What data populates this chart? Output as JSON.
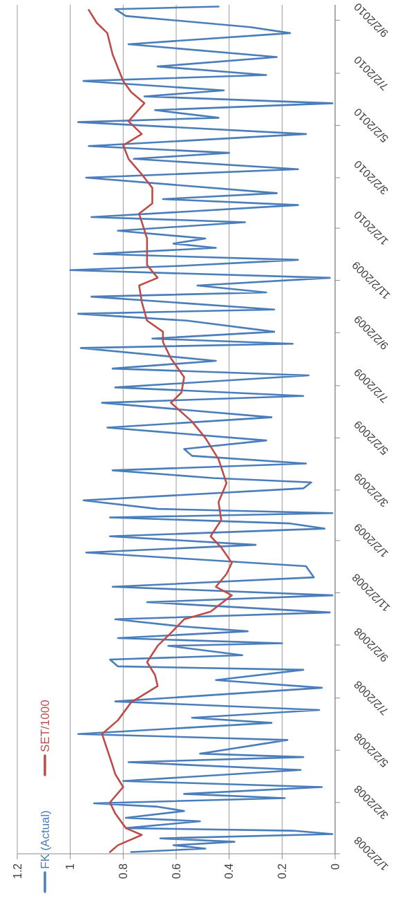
{
  "chart_data": {
    "type": "line",
    "orientation": "horizontal",
    "ylim": [
      "2008-01-02",
      "2010-09-20"
    ],
    "yticks": [
      {
        "value": "2008-01-02",
        "label": "1/2/2008"
      },
      {
        "value": "2008-03-02",
        "label": "3/2/2008"
      },
      {
        "value": "2008-05-02",
        "label": "5/2/2008"
      },
      {
        "value": "2008-07-02",
        "label": "7/2/2008"
      },
      {
        "value": "2008-09-02",
        "label": "9/2/2008"
      },
      {
        "value": "2008-11-02",
        "label": "11/2/2008"
      },
      {
        "value": "2009-01-02",
        "label": "1/2/2009"
      },
      {
        "value": "2009-03-02",
        "label": "3/2/2009"
      },
      {
        "value": "2009-05-02",
        "label": "5/2/2009"
      },
      {
        "value": "2009-07-02",
        "label": "7/2/2009"
      },
      {
        "value": "2009-09-02",
        "label": "9/2/2009"
      },
      {
        "value": "2009-11-02",
        "label": "11/2/2009"
      },
      {
        "value": "2010-01-02",
        "label": "1/2/2010"
      },
      {
        "value": "2010-03-02",
        "label": "3/2/2010"
      },
      {
        "value": "2010-05-02",
        "label": "5/2/2010"
      },
      {
        "value": "2010-07-02",
        "label": "7/2/2010"
      },
      {
        "value": "2010-09-02",
        "label": "9/2/2010"
      }
    ],
    "xlim": [
      1.2,
      0
    ],
    "xticks": [
      1.2,
      1,
      0.8,
      0.6,
      0.4,
      0.2,
      0
    ],
    "grid": "x",
    "legend": "left",
    "series": [
      {
        "name": "FK (Actual)",
        "color": "#4a7ebb",
        "x": [
          "2008-01-04",
          "2008-01-08",
          "2008-01-12",
          "2008-01-16",
          "2008-01-20",
          "2008-01-25",
          "2008-01-29",
          "2008-02-01",
          "2008-02-09",
          "2008-02-13",
          "2008-02-21",
          "2008-02-26",
          "2008-03-01",
          "2008-03-07",
          "2008-03-12",
          "2008-03-20",
          "2008-03-27",
          "2008-04-09",
          "2008-04-18",
          "2008-04-24",
          "2008-04-28",
          "2008-05-14",
          "2008-05-21",
          "2008-06-03",
          "2008-06-09",
          "2008-06-18",
          "2008-06-28",
          "2008-07-14",
          "2008-07-23",
          "2008-08-04",
          "2008-08-08",
          "2008-08-16",
          "2008-08-21",
          "2008-09-01",
          "2008-09-04",
          "2008-09-10",
          "2008-09-18",
          "2008-09-24",
          "2008-10-02",
          "2008-10-10",
          "2008-10-22",
          "2008-10-30",
          "2008-11-09",
          "2008-11-20",
          "2008-12-03",
          "2008-12-19",
          "2008-12-28",
          "2009-01-07",
          "2009-01-16",
          "2009-01-22",
          "2009-01-29",
          "2009-02-03",
          "2009-02-08",
          "2009-02-18",
          "2009-03-04",
          "2009-03-11",
          "2009-03-16",
          "2009-03-25",
          "2009-04-02",
          "2009-04-11",
          "2009-04-19",
          "2009-04-29",
          "2009-05-14",
          "2009-05-26",
          "2009-06-12",
          "2009-06-20",
          "2009-06-30",
          "2009-07-14",
          "2009-07-22",
          "2009-07-31",
          "2009-08-15",
          "2009-08-20",
          "2009-08-26",
          "2009-09-03",
          "2009-09-16",
          "2009-09-24",
          "2009-09-29",
          "2009-10-14",
          "2009-10-19",
          "2009-10-27",
          "2009-11-05",
          "2009-11-14",
          "2009-11-19",
          "2009-11-26",
          "2009-12-03",
          "2009-12-10",
          "2009-12-15",
          "2009-12-21",
          "2009-12-30",
          "2010-01-09",
          "2010-01-15",
          "2010-01-29",
          "2010-02-05",
          "2010-02-12",
          "2010-03-02",
          "2010-03-12",
          "2010-03-24",
          "2010-03-31",
          "2010-04-08",
          "2010-04-22",
          "2010-05-06",
          "2010-05-11",
          "2010-05-20",
          "2010-05-28",
          "2010-06-05",
          "2010-06-12",
          "2010-06-23",
          "2010-06-30",
          "2010-07-10",
          "2010-07-21",
          "2010-08-05",
          "2010-08-18",
          "2010-08-25",
          "2010-09-07",
          "2010-09-15",
          "2010-09-18"
        ],
        "values": [
          0.77,
          0.49,
          0.61,
          0.38,
          0.66,
          0.01,
          0.16,
          0.79,
          0.51,
          0.79,
          0.57,
          0.67,
          0.91,
          0.19,
          0.57,
          0.05,
          0.8,
          0.13,
          0.78,
          0.12,
          0.51,
          0.18,
          0.97,
          0.24,
          0.54,
          0.06,
          0.83,
          0.05,
          0.45,
          0.12,
          0.82,
          0.85,
          0.35,
          0.63,
          0.2,
          0.82,
          0.33,
          0.59,
          0.83,
          0.02,
          0.71,
          0.01,
          0.84,
          0.08,
          0.11,
          0.94,
          0.3,
          0.85,
          0.04,
          0.17,
          0.85,
          0.01,
          0.67,
          0.95,
          0.12,
          0.09,
          0.46,
          0.84,
          0.11,
          0.54,
          0.57,
          0.26,
          0.86,
          0.24,
          0.88,
          0.12,
          0.83,
          0.1,
          0.84,
          0.45,
          0.96,
          0.16,
          0.69,
          0.23,
          0.56,
          0.97,
          0.23,
          0.92,
          0.26,
          0.52,
          0.02,
          1.0,
          0.58,
          0.14,
          0.91,
          0.45,
          0.61,
          0.49,
          0.82,
          0.34,
          0.92,
          0.14,
          0.65,
          0.22,
          0.94,
          0.14,
          0.76,
          0.4,
          0.93,
          0.11,
          0.97,
          0.44,
          0.68,
          0.01,
          0.72,
          0.42,
          0.95,
          0.26,
          0.67,
          0.22,
          0.78,
          0.17,
          0.32,
          0.79,
          0.83,
          0.44
        ]
      },
      {
        "name": "SET/1000",
        "color": "#be4b48",
        "x": [
          "2008-01-04",
          "2008-01-12",
          "2008-01-24",
          "2008-02-01",
          "2008-02-18",
          "2008-03-02",
          "2008-03-20",
          "2008-04-04",
          "2008-04-14",
          "2008-05-21",
          "2008-06-06",
          "2008-06-27",
          "2008-07-16",
          "2008-07-29",
          "2008-08-13",
          "2008-09-01",
          "2008-09-16",
          "2008-10-02",
          "2008-10-11",
          "2008-10-30",
          "2008-11-09",
          "2008-11-24",
          "2008-12-07",
          "2008-12-25",
          "2009-01-07",
          "2009-01-26",
          "2009-02-16",
          "2009-03-10",
          "2009-04-07",
          "2009-05-02",
          "2009-05-21",
          "2009-06-12",
          "2009-06-24",
          "2009-07-12",
          "2009-08-03",
          "2009-08-22",
          "2009-09-03",
          "2009-09-16",
          "2009-10-08",
          "2009-10-27",
          "2009-11-05",
          "2009-11-20",
          "2009-12-21",
          "2010-01-19",
          "2010-01-31",
          "2010-02-18",
          "2010-03-06",
          "2010-03-24",
          "2010-04-09",
          "2010-04-22",
          "2010-05-07",
          "2010-05-28",
          "2010-06-10",
          "2010-06-23",
          "2010-07-24",
          "2010-08-18",
          "2010-08-30",
          "2010-09-14"
        ],
        "values": [
          0.85,
          0.82,
          0.73,
          0.79,
          0.83,
          0.85,
          0.8,
          0.83,
          0.84,
          0.88,
          0.82,
          0.77,
          0.67,
          0.68,
          0.71,
          0.67,
          0.62,
          0.57,
          0.47,
          0.39,
          0.45,
          0.41,
          0.39,
          0.43,
          0.47,
          0.43,
          0.44,
          0.41,
          0.44,
          0.49,
          0.54,
          0.62,
          0.58,
          0.57,
          0.62,
          0.65,
          0.65,
          0.71,
          0.73,
          0.74,
          0.67,
          0.71,
          0.71,
          0.74,
          0.69,
          0.69,
          0.73,
          0.78,
          0.8,
          0.73,
          0.78,
          0.72,
          0.77,
          0.8,
          0.84,
          0.86,
          0.9,
          0.93
        ]
      }
    ]
  }
}
